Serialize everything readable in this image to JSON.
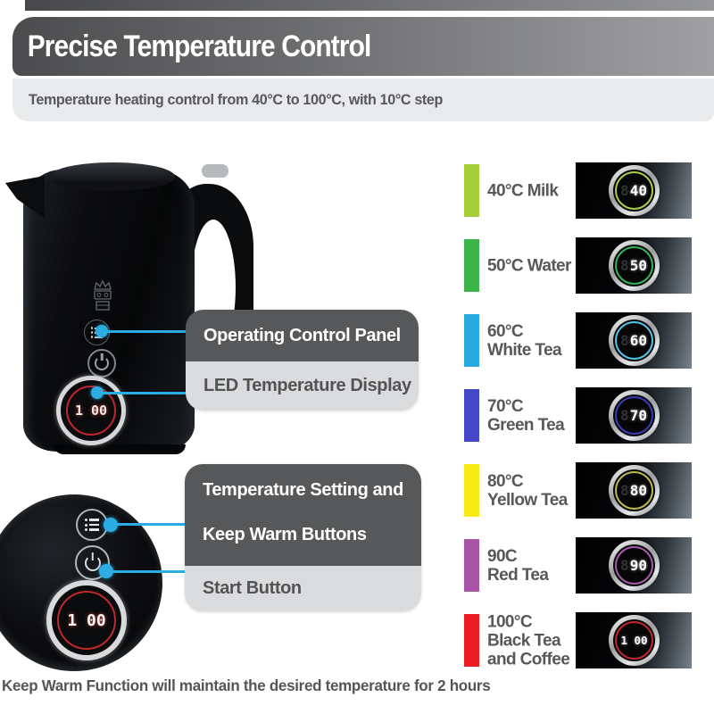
{
  "header": {
    "title": "Precise Temperature Control",
    "subtitle": "Temperature heating control from 40°C to 100°C, with 10°C step"
  },
  "callouts": {
    "operating_panel": "Operating Control Panel",
    "led_display": "LED Temperature Display",
    "temp_setting_line1": "Temperature Setting and",
    "temp_setting_line2": "Keep Warm Buttons",
    "start_button": "Start Button"
  },
  "kettle": {
    "led_value": "1 00",
    "accent_color": "#2BACE2",
    "led_ring_color": "#C0272D"
  },
  "closeup": {
    "led_value": "1 00"
  },
  "temperatures": [
    {
      "label_lines": [
        "40°C Milk"
      ],
      "bar_color": "#A6CE39",
      "ring_color": "#A9CF4C",
      "display": "40",
      "ghost": "8"
    },
    {
      "label_lines": [
        "50°C Water"
      ],
      "bar_color": "#3BB54A",
      "ring_color": "#33B35C",
      "display": "50",
      "ghost": "8"
    },
    {
      "label_lines": [
        "60°C",
        "White Tea"
      ],
      "bar_color": "#29ABE2",
      "ring_color": "#55C4E9",
      "display": "60",
      "ghost": "8"
    },
    {
      "label_lines": [
        "70°C",
        "Green Tea"
      ],
      "bar_color": "#4547C9",
      "ring_color": "#3A3CB4",
      "display": "70",
      "ghost": "8"
    },
    {
      "label_lines": [
        "80°C",
        "Yellow Tea"
      ],
      "bar_color": "#F7EC13",
      "ring_color": "#BFBA4E",
      "display": "80",
      "ghost": "8"
    },
    {
      "label_lines": [
        "90C",
        "Red Tea"
      ],
      "bar_color": "#A855A8",
      "ring_color": "#A958AC",
      "display": "90",
      "ghost": "8"
    },
    {
      "label_lines": [
        "100°C",
        "Black Tea",
        "and Coffee"
      ],
      "bar_color": "#EC1C24",
      "ring_color": "#C2272D",
      "display": "1 00",
      "ghost": ""
    }
  ],
  "footer": {
    "note": "Keep Warm Function will maintain the desired temperature for 2 hours"
  }
}
